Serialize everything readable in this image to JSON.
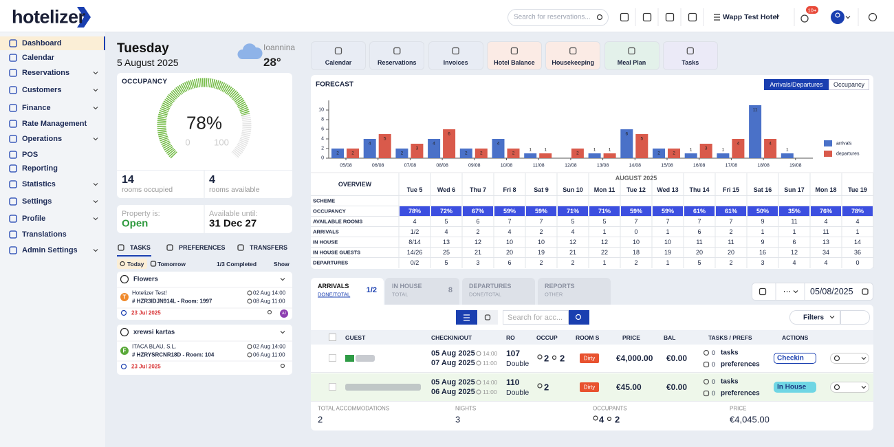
{
  "header": {
    "logo": "hotelizer",
    "search_placeholder": "Search for reservations...",
    "hotel": "Wapp Test Hotel",
    "notifications": "10+"
  },
  "sidebar": {
    "active": 0,
    "items": [
      {
        "label": "Dashboard",
        "expandable": false
      },
      {
        "label": "Calendar",
        "expandable": false
      },
      {
        "label": "Reservations",
        "expandable": true
      },
      {
        "label": "Customers",
        "expandable": true
      },
      {
        "label": "Finance",
        "expandable": true
      },
      {
        "label": "Rate Management",
        "expandable": false
      },
      {
        "label": "Operations",
        "expandable": true
      },
      {
        "label": "POS",
        "expandable": false
      },
      {
        "label": "Reporting",
        "expandable": false
      },
      {
        "label": "Statistics",
        "expandable": true
      },
      {
        "label": "Settings",
        "expandable": true
      },
      {
        "label": "Profile",
        "expandable": true
      },
      {
        "label": "Translations",
        "expandable": false
      },
      {
        "label": "Admin Settings",
        "expandable": true
      }
    ]
  },
  "date": {
    "day": "Tuesday",
    "date": "5 August 2025",
    "city": "Ioannina",
    "temperature": "28°"
  },
  "occupancy": {
    "title": "OCCUPANCY",
    "gauge": {
      "value": 78,
      "label": "78%",
      "min": 0,
      "max": 100
    },
    "rooms_occupied": {
      "value": 14,
      "label": "rooms occupied"
    },
    "rooms_available": {
      "value": 4,
      "label": "rooms available"
    }
  },
  "property": {
    "status_label": "Property is:",
    "status": "Open",
    "until_label": "Available until:",
    "until": "31 Dec 27"
  },
  "tasks": {
    "tabs": [
      "TASKS",
      "PREFERENCES",
      "TRANSFERS"
    ],
    "filters": [
      "Today",
      "Tomorrow"
    ],
    "completed": "1/3 Completed",
    "show": "Show",
    "cards": [
      {
        "title": "Flowers",
        "initial": "T",
        "guest": "Hotelizer Test!",
        "reference": "# HZR3IDJN914L - Room: 1997",
        "checkin": "02 Aug 14:00",
        "checkout": "08 Aug 11:00",
        "due": "23 Jul 2025",
        "assignee": "AJ"
      },
      {
        "title": "xrewsi kartas",
        "initial": "F",
        "guest": "ITACA BLAU, S.L.",
        "reference": "# HZRYSRCNR18D - Room: 104",
        "checkin": "02 Aug 14:00",
        "checkout": "06 Aug 11:00",
        "due": "23 Jul 2025"
      }
    ]
  },
  "quick_links": [
    {
      "label": "Calendar",
      "color": "#e8ecf4"
    },
    {
      "label": "Reservations",
      "color": "#e8ecf4"
    },
    {
      "label": "Invoices",
      "color": "#e8ecf4"
    },
    {
      "label": "Hotel Balance",
      "color": "#fbebe5"
    },
    {
      "label": "Housekeeping",
      "color": "#fbebe5"
    },
    {
      "label": "Meal Plan",
      "color": "#e3f1ea"
    },
    {
      "label": "Tasks",
      "color": "#ebeaf7"
    }
  ],
  "chart_data": {
    "type": "bar",
    "title": "FORECAST",
    "toggle": [
      "Arrivals/Departures",
      "Occupancy"
    ],
    "categories": [
      "05/08",
      "06/08",
      "07/08",
      "08/08",
      "09/08",
      "10/08",
      "11/08",
      "12/08",
      "13/08",
      "14/08",
      "15/08",
      "16/08",
      "17/08",
      "18/08",
      "19/08"
    ],
    "series": [
      {
        "name": "arrivals",
        "color": "#4a71c8",
        "values": [
          2,
          4,
          2,
          4,
          2,
          4,
          1,
          0,
          1,
          6,
          2,
          1,
          1,
          11,
          1
        ]
      },
      {
        "name": "departures",
        "color": "#d95a4b",
        "values": [
          2,
          5,
          3,
          6,
          2,
          2,
          1,
          2,
          1,
          5,
          2,
          3,
          4,
          4,
          0
        ]
      }
    ],
    "ylim": [
      0,
      12
    ],
    "yticks": [
      0,
      2,
      4,
      6,
      8,
      10
    ],
    "legend": "right"
  },
  "overview": {
    "title": "OVERVIEW",
    "month": "AUGUST 2025",
    "days": [
      "Tue 5",
      "Wed 6",
      "Thu 7",
      "Fri 8",
      "Sat 9",
      "Sun 10",
      "Mon 11",
      "Tue 12",
      "Wed 13",
      "Thu 14",
      "Fri 15",
      "Sat 16",
      "Sun 17",
      "Mon 18",
      "Tue 19"
    ],
    "rows": [
      {
        "label": "SCHEME"
      },
      {
        "label": "OCCUPANCY",
        "cells": [
          "78%",
          "72%",
          "67%",
          "59%",
          "59%",
          "71%",
          "71%",
          "59%",
          "59%",
          "61%",
          "61%",
          "50%",
          "35%",
          "76%",
          "78%"
        ]
      },
      {
        "label": "AVAILABLE ROOMS",
        "cells": [
          4,
          5,
          6,
          7,
          7,
          5,
          5,
          7,
          7,
          7,
          7,
          9,
          11,
          4,
          4
        ]
      },
      {
        "label": "ARRIVALS",
        "cells": [
          "1/2",
          4,
          2,
          4,
          2,
          4,
          1,
          0,
          1,
          6,
          2,
          1,
          1,
          11,
          1
        ]
      },
      {
        "label": "IN HOUSE",
        "cells": [
          "8/14",
          13,
          12,
          10,
          10,
          12,
          12,
          10,
          10,
          11,
          11,
          9,
          6,
          13,
          14
        ]
      },
      {
        "label": "IN HOUSE GUESTS",
        "cells": [
          "14/26",
          25,
          21,
          20,
          19,
          21,
          22,
          18,
          19,
          20,
          20,
          16,
          12,
          34,
          36
        ]
      },
      {
        "label": "DEPARTURES",
        "cells": [
          "0/2",
          5,
          3,
          6,
          2,
          2,
          1,
          2,
          1,
          5,
          2,
          3,
          4,
          4,
          0
        ]
      }
    ]
  },
  "bookings": {
    "tabs": [
      {
        "title": "ARRIVALS",
        "sub": "DONE/TOTAL",
        "count": "1/2"
      },
      {
        "title": "IN HOUSE",
        "sub": "TOTAL",
        "count": 8
      },
      {
        "title": "DEPARTURES",
        "sub": "DONE/TOTAL"
      },
      {
        "title": "REPORTS",
        "sub": "OTHER"
      }
    ],
    "date": "05/08/2025",
    "search_placeholder": "Search for acc...",
    "filters": "Filters",
    "columns": [
      "GUEST",
      "CHECKIN/OUT",
      "RO",
      "OCCUP",
      "ROOM S",
      "PRICE",
      "BAL",
      "TASKS / PREFS",
      "ACTIONS"
    ],
    "rows": [
      {
        "checkin": "05 Aug 2025",
        "checkin_time": "14:00",
        "checkout": "07 Aug 2025",
        "checkout_time": "11:00",
        "room": 107,
        "room_type": "Double",
        "adults": 2,
        "children": 2,
        "status": "Dirty",
        "price": "€4,000.00",
        "balance": "€0.00",
        "tasks": 0,
        "tasks_label": "tasks",
        "prefs": 0,
        "prefs_label": "preferences",
        "action": "Checkin"
      },
      {
        "checkin": "05 Aug 2025",
        "checkin_time": "14:00",
        "checkout": "06 Aug 2025",
        "checkout_time": "11:00",
        "room": 110,
        "room_type": "Double",
        "adults": 2,
        "status": "Dirty",
        "price": "€45.00",
        "balance": "€0.00",
        "tasks": 0,
        "tasks_label": "tasks",
        "prefs": 0,
        "prefs_label": "preferences",
        "action": "In House"
      }
    ],
    "totals": [
      {
        "label": "TOTAL ACCOMMODATIONS",
        "value": 2
      },
      {
        "label": "NIGHTS",
        "value": 3
      },
      {
        "label": "OCCUPANTS",
        "adults": 4,
        "children": 2
      },
      {
        "label": "PRICE",
        "value": "€4,045.00"
      }
    ]
  }
}
